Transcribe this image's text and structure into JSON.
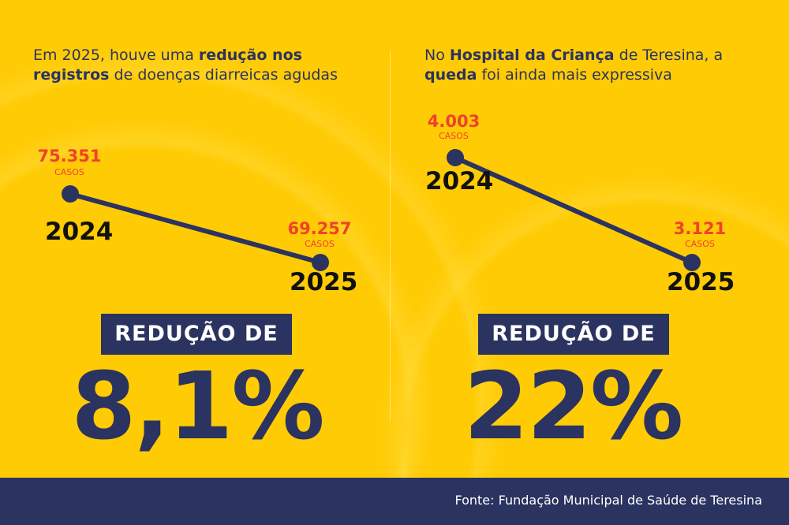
{
  "colors": {
    "background": "#FFCB05",
    "navy": "#2b3360",
    "value_red": "#f0412b"
  },
  "chart_data": [
    {
      "type": "line",
      "title_segments": [
        {
          "text": "Em 2025, houve uma ",
          "bold": false
        },
        {
          "text": "redução nos registros",
          "bold": true
        },
        {
          "text": " de doenças diarreicas agudas",
          "bold": false
        }
      ],
      "categories": [
        "2024",
        "2025"
      ],
      "values": [
        75351,
        69257
      ],
      "value_labels": [
        "75.351",
        "69.257"
      ],
      "unit_label": "CASOS",
      "badge": "REDUÇÃO DE",
      "reduction": "8,1%"
    },
    {
      "type": "line",
      "title_segments": [
        {
          "text": "No ",
          "bold": false
        },
        {
          "text": "Hospital da Criança",
          "bold": true
        },
        {
          "text": " de Teresina, a ",
          "bold": false
        },
        {
          "text": "queda",
          "bold": true
        },
        {
          "text": " foi ainda mais expressiva",
          "bold": false
        }
      ],
      "categories": [
        "2024",
        "2025"
      ],
      "values": [
        4003,
        3121
      ],
      "value_labels": [
        "4.003",
        "3.121"
      ],
      "unit_label": "CASOS",
      "badge": "REDUÇÃO DE",
      "reduction": "22%"
    }
  ],
  "footer": {
    "source": "Fonte: Fundação Municipal de Saúde de Teresina"
  }
}
